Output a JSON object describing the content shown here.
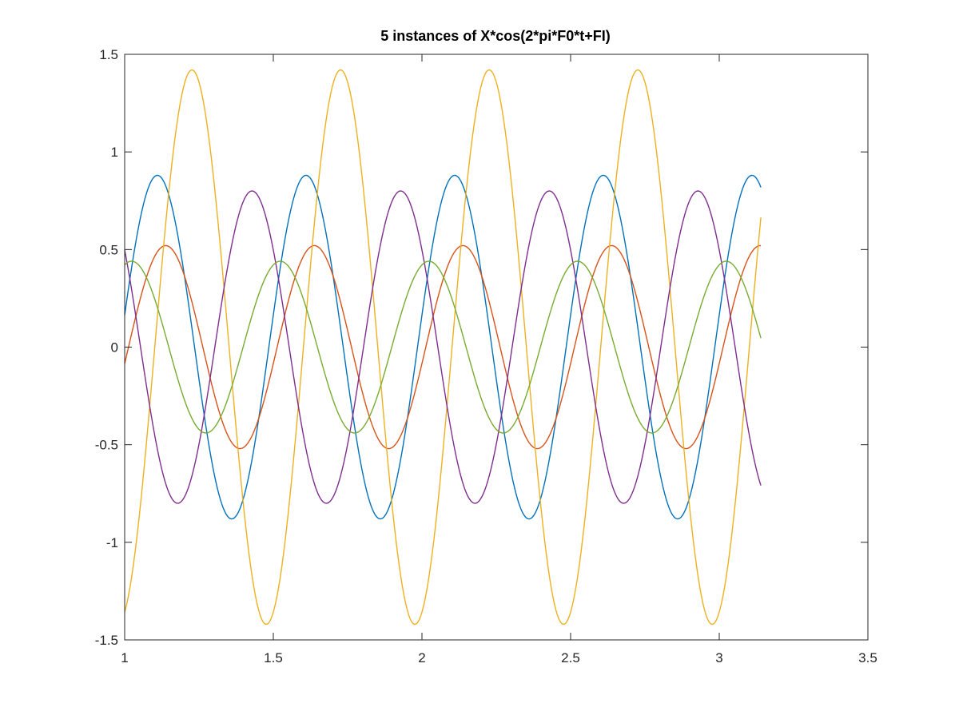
{
  "chart_data": {
    "type": "line",
    "title": "5 instances of X*cos(2*pi*F0*t+FI)",
    "xlabel": "",
    "ylabel": "",
    "xlim": [
      1,
      3.5
    ],
    "ylim": [
      -1.5,
      1.5
    ],
    "xticks": [
      1,
      1.5,
      2,
      2.5,
      3,
      3.5
    ],
    "xtick_labels": [
      "1",
      "1.5",
      "2",
      "2.5",
      "3",
      "3.5"
    ],
    "yticks": [
      -1.5,
      -1,
      -0.5,
      0,
      0.5,
      1,
      1.5
    ],
    "ytick_labels": [
      "-1.5",
      "-1",
      "-0.5",
      "0",
      "0.5",
      "1",
      "1.5"
    ],
    "grid": false,
    "t_range": [
      1,
      3.14
    ],
    "series": [
      {
        "amplitude": 0.88,
        "frequency": 2,
        "phase": 4.9,
        "color": "#0072BD"
      },
      {
        "amplitude": 0.52,
        "frequency": 2,
        "phase": 4.55,
        "color": "#D95319"
      },
      {
        "amplitude": 1.42,
        "frequency": 2,
        "phase": 3.44,
        "color": "#EDB120"
      },
      {
        "amplitude": 0.8,
        "frequency": 2,
        "phase": 0.9,
        "color": "#7E2F8E"
      },
      {
        "amplitude": 0.44,
        "frequency": 2,
        "phase": 5.99,
        "color": "#77AC30"
      }
    ]
  }
}
